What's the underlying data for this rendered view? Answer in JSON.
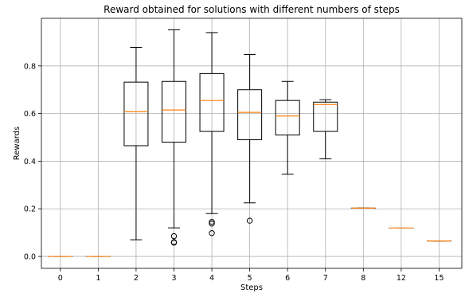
{
  "chart_data": {
    "type": "boxplot",
    "title": "Reward obtained for solutions with different numbers of steps",
    "xlabel": "Steps",
    "ylabel": "Rewards",
    "categories": [
      "0",
      "1",
      "2",
      "3",
      "4",
      "5",
      "6",
      "7",
      "8",
      "12",
      "15"
    ],
    "ylim": [
      -0.05,
      1.0
    ],
    "yticks": [
      0.0,
      0.2,
      0.4,
      0.6,
      0.8
    ],
    "ytick_labels": [
      "0.0",
      "0.2",
      "0.4",
      "0.6",
      "0.8"
    ],
    "grid": true,
    "colors": {
      "box": "#000000",
      "median": "#ff7f0e",
      "grid": "#b0b0b0"
    },
    "boxes": [
      {
        "category": "0",
        "whisker_low": 0.0,
        "q1": 0.0,
        "median": 0.0,
        "q3": 0.0,
        "whisker_high": 0.0,
        "fliers": []
      },
      {
        "category": "1",
        "whisker_low": 0.0,
        "q1": 0.0,
        "median": 0.0,
        "q3": 0.0,
        "whisker_high": 0.0,
        "fliers": []
      },
      {
        "category": "2",
        "whisker_low": 0.07,
        "q1": 0.465,
        "median": 0.608,
        "q3": 0.732,
        "whisker_high": 0.878,
        "fliers": []
      },
      {
        "category": "3",
        "whisker_low": 0.12,
        "q1": 0.48,
        "median": 0.615,
        "q3": 0.735,
        "whisker_high": 0.952,
        "fliers": [
          0.085,
          0.06,
          0.058
        ]
      },
      {
        "category": "4",
        "whisker_low": 0.18,
        "q1": 0.525,
        "median": 0.655,
        "q3": 0.768,
        "whisker_high": 0.94,
        "fliers": [
          0.145,
          0.138,
          0.098
        ]
      },
      {
        "category": "5",
        "whisker_low": 0.225,
        "q1": 0.49,
        "median": 0.605,
        "q3": 0.7,
        "whisker_high": 0.848,
        "fliers": [
          0.15
        ]
      },
      {
        "category": "6",
        "whisker_low": 0.345,
        "q1": 0.51,
        "median": 0.59,
        "q3": 0.655,
        "whisker_high": 0.735,
        "fliers": []
      },
      {
        "category": "7",
        "whisker_low": 0.41,
        "q1": 0.525,
        "median": 0.638,
        "q3": 0.648,
        "whisker_high": 0.658,
        "fliers": []
      },
      {
        "category": "8",
        "whisker_low": 0.203,
        "q1": 0.203,
        "median": 0.203,
        "q3": 0.203,
        "whisker_high": 0.203,
        "fliers": []
      },
      {
        "category": "12",
        "whisker_low": 0.119,
        "q1": 0.119,
        "median": 0.119,
        "q3": 0.119,
        "whisker_high": 0.119,
        "fliers": []
      },
      {
        "category": "15",
        "whisker_low": 0.065,
        "q1": 0.065,
        "median": 0.065,
        "q3": 0.065,
        "whisker_high": 0.065,
        "fliers": []
      }
    ]
  }
}
